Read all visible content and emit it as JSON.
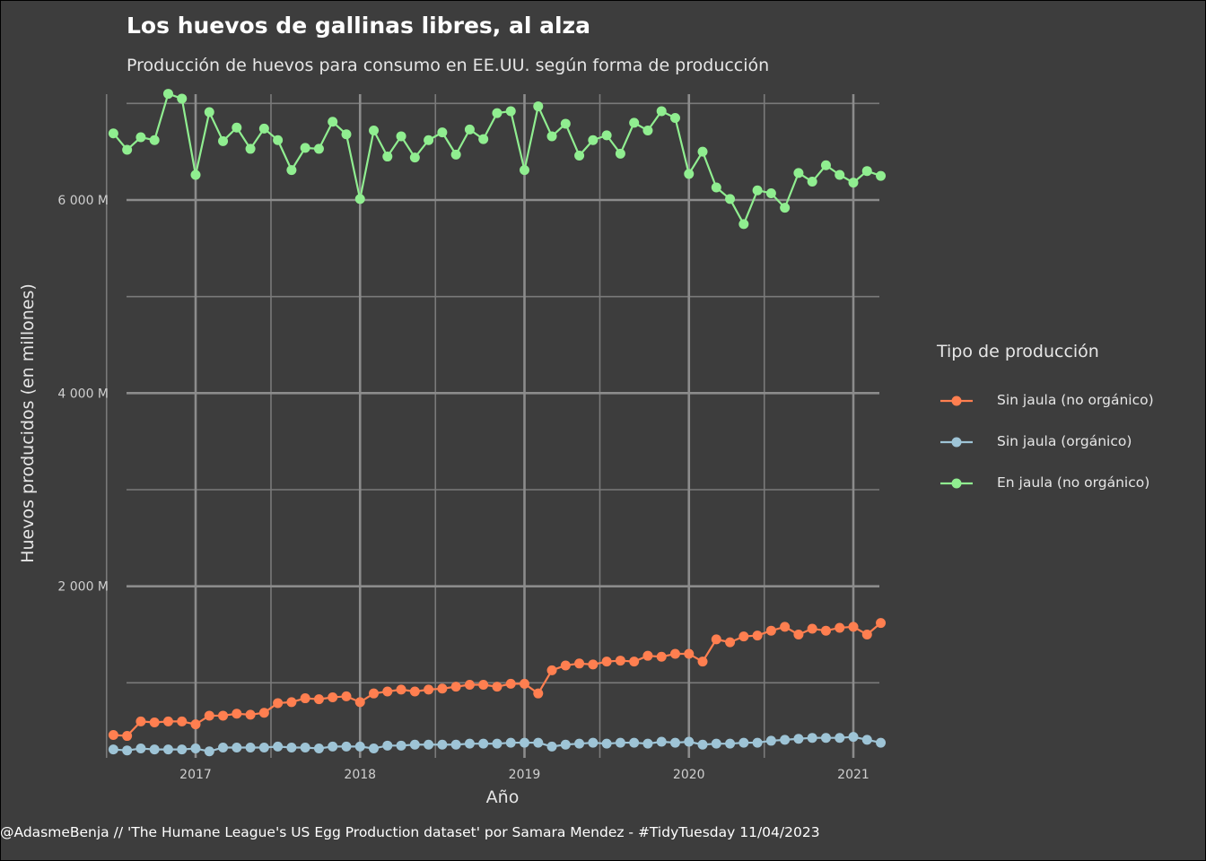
{
  "title": "Los huevos de gallinas libres, al alza",
  "subtitle": "Producción de huevos para consumo en EE.UU. según forma de producción",
  "caption": "@AdasmeBenja // 'The Humane League's US Egg Production dataset' por Samara Mendez - #TidyTuesday 11/04/2023",
  "chart_data": {
    "type": "line",
    "title": "Los huevos de gallinas libres, al alza",
    "subtitle": "Producción de huevos para consumo en EE.UU. según forma de producción",
    "xlabel": "Año",
    "ylabel": "Huevos producidos (en millones)",
    "xlim": [
      "2016-07",
      "2021-03"
    ],
    "ylim": [
      0,
      7000
    ],
    "x_ticks": [
      "2017",
      "2018",
      "2019",
      "2020",
      "2021"
    ],
    "y_ticks": [
      {
        "value": 2000,
        "label": "2 000 M"
      },
      {
        "value": 4000,
        "label": "4 000 M"
      },
      {
        "value": 6000,
        "label": "6 000 M"
      }
    ],
    "grid": true,
    "legend": {
      "title": "Tipo de producción",
      "position": "right"
    },
    "x": [
      "2016-07",
      "2016-08",
      "2016-09",
      "2016-10",
      "2016-11",
      "2016-12",
      "2017-01",
      "2017-02",
      "2017-03",
      "2017-04",
      "2017-05",
      "2017-06",
      "2017-07",
      "2017-08",
      "2017-09",
      "2017-10",
      "2017-11",
      "2017-12",
      "2018-01",
      "2018-02",
      "2018-03",
      "2018-04",
      "2018-05",
      "2018-06",
      "2018-07",
      "2018-08",
      "2018-09",
      "2018-10",
      "2018-11",
      "2018-12",
      "2019-01",
      "2019-02",
      "2019-03",
      "2019-04",
      "2019-05",
      "2019-06",
      "2019-07",
      "2019-08",
      "2019-09",
      "2019-10",
      "2019-11",
      "2019-12",
      "2020-01",
      "2020-02",
      "2020-03",
      "2020-04",
      "2020-05",
      "2020-06",
      "2020-07",
      "2020-08",
      "2020-09",
      "2020-10",
      "2020-11",
      "2020-12",
      "2021-01",
      "2021-02",
      "2021-03"
    ],
    "series": [
      {
        "name": "Sin jaula (no orgánico)",
        "color": "#ff7f50",
        "values": [
          460,
          450,
          600,
          590,
          600,
          600,
          570,
          660,
          660,
          680,
          670,
          690,
          790,
          800,
          840,
          830,
          850,
          860,
          800,
          890,
          910,
          930,
          910,
          930,
          940,
          960,
          980,
          980,
          960,
          990,
          990,
          890,
          1130,
          1180,
          1200,
          1190,
          1220,
          1230,
          1220,
          1280,
          1270,
          1300,
          1300,
          1220,
          1450,
          1420,
          1480,
          1490,
          1540,
          1580,
          1500,
          1560,
          1540,
          1570,
          1580,
          1500,
          1620
        ]
      },
      {
        "name": "Sin jaula (orgánico)",
        "color": "#9ec4d6",
        "values": [
          310,
          300,
          320,
          310,
          310,
          310,
          320,
          290,
          330,
          330,
          330,
          330,
          340,
          330,
          330,
          320,
          340,
          340,
          340,
          320,
          350,
          350,
          360,
          360,
          360,
          360,
          370,
          370,
          370,
          380,
          380,
          380,
          340,
          360,
          370,
          380,
          370,
          380,
          380,
          370,
          390,
          380,
          390,
          360,
          370,
          370,
          380,
          380,
          400,
          410,
          420,
          430,
          430,
          430,
          440,
          410,
          380
        ]
      },
      {
        "name": "En jaula (no orgánico)",
        "color": "#90ee90",
        "values": [
          6690,
          6520,
          6650,
          6620,
          7100,
          7050,
          6260,
          6910,
          6610,
          6750,
          6530,
          6740,
          6620,
          6310,
          6540,
          6530,
          6810,
          6680,
          6010,
          6720,
          6450,
          6660,
          6440,
          6620,
          6700,
          6470,
          6730,
          6630,
          6900,
          6920,
          6310,
          6970,
          6660,
          6790,
          6460,
          6620,
          6670,
          6480,
          6800,
          6720,
          6920,
          6850,
          6270,
          6500,
          6130,
          6010,
          5750,
          6100,
          6070,
          5920,
          6280,
          6190,
          6360,
          6260,
          6180,
          6300,
          6250
        ]
      }
    ]
  }
}
